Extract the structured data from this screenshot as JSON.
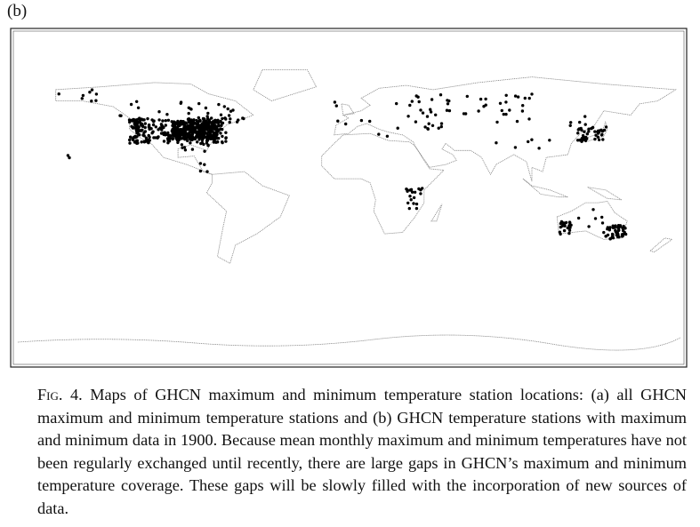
{
  "panel_label": "(b)",
  "caption": {
    "label": "Fig. 4.",
    "text": "Maps of GHCN maximum and minimum temperature station locations: (a) all GHCN maximum and minimum temperature stations and (b) GHCN temperature stations with maximum and minimum data in 1900. Because mean monthly maximum and minimum temperatures have not been regularly exchanged until recently, there are large gaps in GHCN’s maximum and minimum temperature coverage. These gaps will be slowly filled with the incorporation of new sources of data."
  }
}
